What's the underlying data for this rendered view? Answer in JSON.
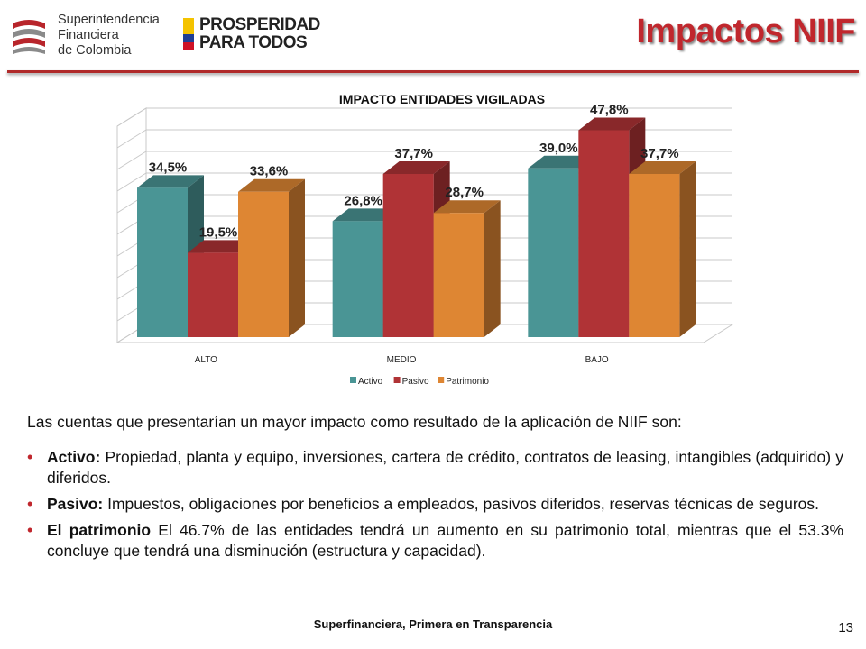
{
  "header": {
    "org_logo_lines": [
      "Superintendencia",
      "Financiera",
      "de Colombia"
    ],
    "gov_logo_lines": [
      "PROSPERIDAD",
      "PARA TODOS"
    ],
    "title": "Impactos NIIF"
  },
  "chart_data": {
    "type": "bar",
    "title": "IMPACTO ENTIDADES VIGILADAS",
    "categories": [
      "ALTO",
      "MEDIO",
      "BAJO"
    ],
    "series": [
      {
        "name": "Activo",
        "color": "#4a9595",
        "values": [
          34.5,
          26.8,
          39.0
        ],
        "labels": [
          "34,5%",
          "26,8%",
          "39,0%"
        ]
      },
      {
        "name": "Pasivo",
        "color": "#b03336",
        "values": [
          19.5,
          37.7,
          47.8
        ],
        "labels": [
          "19,5%",
          "37,7%",
          "47,8%"
        ]
      },
      {
        "name": "Patrimonio",
        "color": "#de8633",
        "values": [
          33.6,
          28.7,
          37.7
        ],
        "labels": [
          "33,6%",
          "28,7%",
          "37,7%"
        ]
      }
    ],
    "ylim": [
      0,
      50
    ],
    "grid": true,
    "legend": "bottom",
    "three_d": true
  },
  "body": {
    "intro": "Las cuentas que presentarían un  mayor impacto como resultado de la aplicación de NIIF son:",
    "bullets": [
      {
        "bold": "Activo:",
        "text": " Propiedad, planta y equipo, inversiones, cartera de crédito,  contratos de leasing, intangibles (adquirido) y diferidos."
      },
      {
        "bold": "Pasivo:",
        "text": " Impuestos, obligaciones por beneficios a empleados, pasivos diferidos, reservas técnicas de seguros."
      },
      {
        "bold": "El patrimonio",
        "text": " El 46.7% de las entidades tendrá un aumento en su patrimonio total, mientras que el 53.3% concluye que tendrá una disminución (estructura y capacidad)."
      }
    ]
  },
  "footer": {
    "text": "Superfinanciera, Primera en Transparencia",
    "page": "13"
  }
}
